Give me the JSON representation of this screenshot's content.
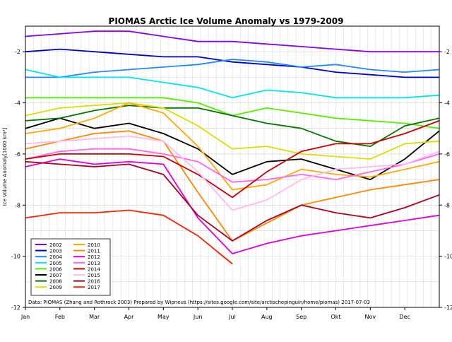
{
  "chart_data": {
    "type": "line",
    "title": "PIOMAS Arctic Ice Volume Anomaly vs 1979-2009",
    "ylabel": "Ice Volume Anomaly[1000 km³]",
    "xlabel": "",
    "ylim": [
      -12,
      -1
    ],
    "xlim": [
      0,
      12
    ],
    "yticks": [
      -12,
      -10,
      -8,
      -6,
      -4,
      -2
    ],
    "ytick_labels": [
      "-12",
      "-10",
      "-8",
      "-6",
      "-4",
      "-2"
    ],
    "xticks": [
      0,
      1,
      2,
      3,
      4,
      5,
      6,
      7,
      8,
      9,
      10,
      11
    ],
    "xtick_labels": [
      "Jan",
      "Feb",
      "Mar",
      "Apr",
      "May",
      "Jun",
      "Jul",
      "Aug",
      "Sep",
      "Okt",
      "Nov",
      "Dec"
    ],
    "grid": true,
    "legend_position": "bottom-left",
    "annotation": "Data: PIOMAS (Zhang and Rothrock 2003) Prepared by Wipneus (https://sites.google.com/site/arctischepinguin/home/piomas)     2017-07-03",
    "series": [
      {
        "name": "2002",
        "color": "#8800ee",
        "x": [
          0,
          1,
          2,
          3,
          4,
          5,
          6,
          7,
          8,
          9,
          10,
          11,
          12
        ],
        "y": [
          -1.4,
          -1.3,
          -1.2,
          -1.2,
          -1.4,
          -1.6,
          -1.6,
          -1.7,
          -1.8,
          -1.9,
          -2.0,
          -2.0,
          -2.0
        ]
      },
      {
        "name": "2003",
        "color": "#0000cc",
        "x": [
          0,
          1,
          2,
          3,
          4,
          5,
          6,
          7,
          8,
          9,
          10,
          11,
          12
        ],
        "y": [
          -2.0,
          -1.9,
          -2.0,
          -2.1,
          -2.2,
          -2.2,
          -2.4,
          -2.5,
          -2.6,
          -2.8,
          -2.9,
          -3.0,
          -3.0
        ]
      },
      {
        "name": "2004",
        "color": "#2288ff",
        "x": [
          0,
          1,
          2,
          3,
          4,
          5,
          6,
          7,
          8,
          9,
          10,
          11,
          12
        ],
        "y": [
          -3.0,
          -3.0,
          -2.8,
          -2.7,
          -2.6,
          -2.5,
          -2.3,
          -2.4,
          -2.6,
          -2.5,
          -2.7,
          -2.8,
          -2.7
        ]
      },
      {
        "name": "2005",
        "color": "#00e5ee",
        "x": [
          0,
          1,
          2,
          3,
          4,
          5,
          6,
          7,
          8,
          9,
          10,
          11,
          12
        ],
        "y": [
          -2.7,
          -3.0,
          -3.0,
          -3.0,
          -3.2,
          -3.4,
          -3.8,
          -3.5,
          -3.6,
          -3.8,
          -3.8,
          -3.8,
          -3.7
        ]
      },
      {
        "name": "2006",
        "color": "#55ee00",
        "x": [
          0,
          1,
          2,
          3,
          4,
          5,
          6,
          7,
          8,
          9,
          10,
          11,
          12
        ],
        "y": [
          -3.8,
          -3.8,
          -3.8,
          -3.8,
          -3.8,
          -4.0,
          -4.5,
          -4.2,
          -4.4,
          -4.6,
          -4.7,
          -4.8,
          -5.0
        ]
      },
      {
        "name": "2007",
        "color": "#000000",
        "x": [
          0,
          1,
          2,
          3,
          4,
          5,
          6,
          7,
          8,
          9,
          10,
          11,
          12
        ],
        "y": [
          -5.0,
          -4.6,
          -5.0,
          -4.8,
          -5.2,
          -5.8,
          -6.8,
          -6.3,
          -6.2,
          -6.6,
          -7.0,
          -6.2,
          -5.1
        ]
      },
      {
        "name": "2008",
        "color": "#007700",
        "x": [
          0,
          1,
          2,
          3,
          4,
          5,
          6,
          7,
          8,
          9,
          10,
          11,
          12
        ],
        "y": [
          -4.7,
          -4.6,
          -4.3,
          -4.1,
          -4.2,
          -4.2,
          -4.5,
          -4.8,
          -5.0,
          -5.5,
          -5.7,
          -4.9,
          -4.6
        ]
      },
      {
        "name": "2009",
        "color": "#dddd00",
        "x": [
          0,
          1,
          2,
          3,
          4,
          5,
          6,
          7,
          8,
          9,
          10,
          11,
          12
        ],
        "y": [
          -4.5,
          -4.2,
          -4.1,
          -4.0,
          -4.2,
          -4.9,
          -5.8,
          -5.7,
          -6.0,
          -6.1,
          -6.2,
          -5.6,
          -5.5
        ]
      },
      {
        "name": "2010",
        "color": "#ffaa00",
        "x": [
          0,
          1,
          2,
          3,
          4,
          5,
          6,
          7,
          8,
          9,
          10,
          11,
          12
        ],
        "y": [
          -5.2,
          -5.0,
          -4.6,
          -4.0,
          -4.4,
          -5.7,
          -7.4,
          -7.2,
          -6.6,
          -6.8,
          -6.9,
          -6.6,
          -6.3
        ]
      },
      {
        "name": "2011",
        "color": "#ff8800",
        "x": [
          0,
          1,
          2,
          3,
          4,
          5,
          6,
          7,
          8,
          9,
          10,
          11,
          12
        ],
        "y": [
          -5.8,
          -5.5,
          -5.2,
          -5.1,
          -5.5,
          -7.5,
          -9.4,
          -8.7,
          -8.0,
          -7.7,
          -7.4,
          -7.2,
          -7.0
        ]
      },
      {
        "name": "2012",
        "color": "#dd00dd",
        "x": [
          0,
          1,
          2,
          3,
          4,
          5,
          6,
          7,
          8,
          9,
          10,
          11,
          12
        ],
        "y": [
          -6.5,
          -6.2,
          -6.4,
          -6.3,
          -6.4,
          -8.5,
          -9.9,
          -9.5,
          -9.2,
          -9.0,
          -8.8,
          -8.6,
          -8.4
        ]
      },
      {
        "name": "2013",
        "color": "#ff66ee",
        "x": [
          0,
          1,
          2,
          3,
          4,
          5,
          6,
          7,
          8,
          9,
          10,
          11,
          12
        ],
        "y": [
          -6.2,
          -5.9,
          -5.8,
          -5.8,
          -6.0,
          -6.3,
          -7.1,
          -7.0,
          -6.8,
          -7.0,
          -6.7,
          -6.4,
          -6.0
        ]
      },
      {
        "name": "2014",
        "color": "#cc0000",
        "x": [
          0,
          1,
          2,
          3,
          4,
          5,
          6,
          7,
          8,
          9,
          10,
          11,
          12
        ],
        "y": [
          -6.2,
          -6.0,
          -6.0,
          -6.0,
          -6.1,
          -6.8,
          -7.7,
          -6.7,
          -5.9,
          -5.6,
          -5.6,
          -5.2,
          -4.7
        ]
      },
      {
        "name": "2015",
        "color": "#ffbbee",
        "x": [
          0,
          1,
          2,
          3,
          4,
          5,
          6,
          7,
          8,
          9,
          10,
          11,
          12
        ],
        "y": [
          -5.6,
          -5.5,
          -5.4,
          -5.3,
          -5.5,
          -6.7,
          -8.2,
          -7.8,
          -7.0,
          -6.6,
          -6.5,
          -6.4,
          -5.9
        ]
      },
      {
        "name": "2016",
        "color": "#aa0022",
        "x": [
          0,
          1,
          2,
          3,
          4,
          5,
          6,
          7,
          8,
          9,
          10,
          11,
          12
        ],
        "y": [
          -6.3,
          -6.4,
          -6.5,
          -6.4,
          -6.8,
          -8.4,
          -9.4,
          -8.6,
          -8.0,
          -8.3,
          -8.5,
          -8.1,
          -7.6
        ]
      },
      {
        "name": "2017",
        "color": "#ff2200",
        "x": [
          0,
          1,
          2,
          3,
          4,
          5,
          6
        ],
        "y": [
          -8.5,
          -8.3,
          -8.3,
          -8.2,
          -8.4,
          -9.2,
          -10.3
        ]
      }
    ]
  }
}
